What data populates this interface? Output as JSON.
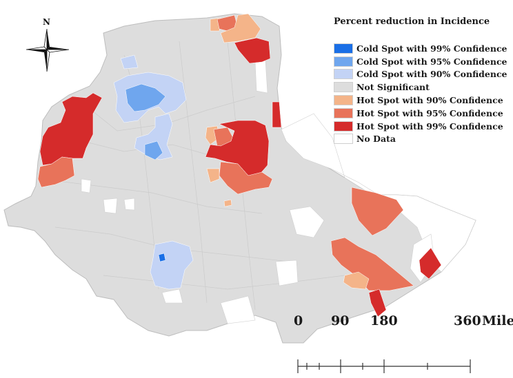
{
  "legend": {
    "title": "Percent reduction in Incidence",
    "items": [
      {
        "label": "Cold Spot with 99% Confidence",
        "color": "#1a6fe6"
      },
      {
        "label": "Cold Spot with 95% Confidence",
        "color": "#6fa6ee"
      },
      {
        "label": "Cold Spot with 90% Confidence",
        "color": "#c3d3f5"
      },
      {
        "label": "Not Significant",
        "color": "#dddddd"
      },
      {
        "label": "Hot Spot with 90% Confidence",
        "color": "#f4b489"
      },
      {
        "label": "Hot Spot with 95% Confidence",
        "color": "#e8735a"
      },
      {
        "label": "Hot Spot with 99% Confidence",
        "color": "#d52b2b"
      },
      {
        "label": "No Data",
        "color": "#ffffff"
      }
    ]
  },
  "compass": {
    "north_label": "N"
  },
  "scale_bar": {
    "ticks": [
      "0",
      "90",
      "180",
      "360"
    ],
    "unit": "Miles"
  },
  "colors": {
    "base": "#dddddd",
    "region_border": "#c8c8c8",
    "cold_99": "#1a6fe6",
    "cold_95": "#6fa6ee",
    "cold_90": "#c3d3f5",
    "hot_90": "#f4b489",
    "hot_95": "#e8735a",
    "hot_99": "#d52b2b",
    "no_data": "#ffffff"
  }
}
